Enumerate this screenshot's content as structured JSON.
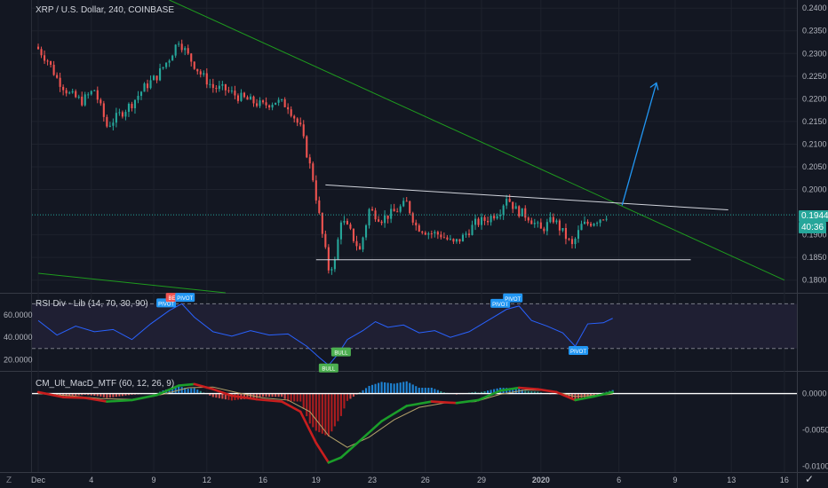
{
  "symbol_title": "XRP / U.S. Dollar, 240, COINBASE",
  "last_price": "0.1944",
  "countdown": "40:36",
  "rsi_label": "RSI Div - Lib (14, 70, 30, 90)",
  "macd_label": "CM_Ult_MacD_MTF (60, 12, 26, 9)",
  "corner_symbol": "Z",
  "logo_glyph": "✓",
  "colors": {
    "background": "#131722",
    "grid": "#1e222d",
    "bull": "#26a69a",
    "bear": "#ef5350",
    "trendline": "#1e9b1e",
    "pattern_line": "#d1d4dc",
    "projection_arrow": "#2196f3",
    "rsi_line": "#2962ff",
    "macd_up": "#1b9e2a",
    "macd_down": "#c81e1e",
    "signal": "#b5a36a"
  },
  "chart_data": [
    {
      "type": "candlestick",
      "title": "XRP / U.S. Dollar, 240, COINBASE",
      "x_ticks": [
        "Dec",
        "4",
        "9",
        "12",
        "16",
        "19",
        "23",
        "26",
        "29",
        "2020",
        "6",
        "9",
        "13",
        "16"
      ],
      "y_ticks": [
        "0.2400",
        "0.2350",
        "0.2300",
        "0.2250",
        "0.2200",
        "0.2150",
        "0.2100",
        "0.2050",
        "0.2000",
        "0.1900",
        "0.1850",
        "0.1800"
      ],
      "ylim": [
        0.1772,
        0.2418
      ],
      "last_price": 0.1944,
      "close_path": [
        {
          "x": 0,
          "y": 0.231
        },
        {
          "x": 3,
          "y": 0.2285
        },
        {
          "x": 6,
          "y": 0.2245
        },
        {
          "x": 10,
          "y": 0.221
        },
        {
          "x": 14,
          "y": 0.2195
        },
        {
          "x": 18,
          "y": 0.222
        },
        {
          "x": 22,
          "y": 0.214
        },
        {
          "x": 26,
          "y": 0.2165
        },
        {
          "x": 30,
          "y": 0.219
        },
        {
          "x": 34,
          "y": 0.2225
        },
        {
          "x": 38,
          "y": 0.225
        },
        {
          "x": 42,
          "y": 0.229
        },
        {
          "x": 45,
          "y": 0.233
        },
        {
          "x": 48,
          "y": 0.2295
        },
        {
          "x": 52,
          "y": 0.2255
        },
        {
          "x": 56,
          "y": 0.2225
        },
        {
          "x": 60,
          "y": 0.222
        },
        {
          "x": 64,
          "y": 0.2205
        },
        {
          "x": 68,
          "y": 0.2195
        },
        {
          "x": 72,
          "y": 0.2185
        },
        {
          "x": 76,
          "y": 0.2195
        },
        {
          "x": 80,
          "y": 0.2185
        },
        {
          "x": 84,
          "y": 0.2135
        },
        {
          "x": 88,
          "y": 0.2025
        },
        {
          "x": 91,
          "y": 0.19
        },
        {
          "x": 93,
          "y": 0.1825
        },
        {
          "x": 95,
          "y": 0.184
        },
        {
          "x": 97,
          "y": 0.1935
        },
        {
          "x": 100,
          "y": 0.1905
        },
        {
          "x": 103,
          "y": 0.1865
        },
        {
          "x": 106,
          "y": 0.1955
        },
        {
          "x": 110,
          "y": 0.1935
        },
        {
          "x": 114,
          "y": 0.195
        },
        {
          "x": 118,
          "y": 0.197
        },
        {
          "x": 121,
          "y": 0.192
        },
        {
          "x": 125,
          "y": 0.1905
        },
        {
          "x": 129,
          "y": 0.19
        },
        {
          "x": 133,
          "y": 0.188
        },
        {
          "x": 136,
          "y": 0.1895
        },
        {
          "x": 140,
          "y": 0.1925
        },
        {
          "x": 144,
          "y": 0.1935
        },
        {
          "x": 148,
          "y": 0.1955
        },
        {
          "x": 150,
          "y": 0.1985
        },
        {
          "x": 153,
          "y": 0.1955
        },
        {
          "x": 157,
          "y": 0.194
        },
        {
          "x": 161,
          "y": 0.191
        },
        {
          "x": 165,
          "y": 0.1935
        },
        {
          "x": 168,
          "y": 0.1905
        },
        {
          "x": 171,
          "y": 0.1875
        },
        {
          "x": 174,
          "y": 0.192
        },
        {
          "x": 178,
          "y": 0.193
        },
        {
          "x": 182,
          "y": 0.1944
        }
      ],
      "trendlines": [
        {
          "name": "descending-trendline",
          "points": [
            {
              "x": 42,
              "y": 0.2418
            },
            {
              "x": 239,
              "y": 0.18
            }
          ]
        },
        {
          "name": "lower-trendline",
          "points": [
            {
              "x": 0,
              "y": 0.1815
            },
            {
              "x": 60,
              "y": 0.1772
            }
          ]
        },
        {
          "name": "triangle-upper",
          "points": [
            {
              "x": 92,
              "y": 0.201
            },
            {
              "x": 221,
              "y": 0.1955
            }
          ]
        },
        {
          "name": "triangle-lower",
          "points": [
            {
              "x": 89,
              "y": 0.1845
            },
            {
              "x": 209,
              "y": 0.1845
            }
          ]
        },
        {
          "name": "breakout-projection",
          "points": [
            {
              "x": 187,
              "y": 0.1965
            },
            {
              "x": 198,
              "y": 0.2235
            }
          ]
        }
      ],
      "xlim": [
        -2,
        243
      ]
    },
    {
      "type": "line",
      "title": "RSI Div - Lib (14, 70, 30, 90)",
      "y_ticks": [
        "60.0000",
        "40.0000",
        "20.0000"
      ],
      "ylim": [
        10,
        79
      ],
      "bands": [
        70,
        30
      ],
      "rsi_path": [
        {
          "x": 0,
          "y": 55
        },
        {
          "x": 6,
          "y": 42
        },
        {
          "x": 12,
          "y": 50
        },
        {
          "x": 18,
          "y": 45
        },
        {
          "x": 24,
          "y": 47
        },
        {
          "x": 30,
          "y": 38
        },
        {
          "x": 36,
          "y": 52
        },
        {
          "x": 42,
          "y": 64
        },
        {
          "x": 46,
          "y": 70
        },
        {
          "x": 50,
          "y": 58
        },
        {
          "x": 56,
          "y": 45
        },
        {
          "x": 62,
          "y": 41
        },
        {
          "x": 68,
          "y": 46
        },
        {
          "x": 74,
          "y": 42
        },
        {
          "x": 80,
          "y": 43
        },
        {
          "x": 86,
          "y": 32
        },
        {
          "x": 90,
          "y": 22
        },
        {
          "x": 93,
          "y": 15
        },
        {
          "x": 96,
          "y": 25
        },
        {
          "x": 99,
          "y": 38
        },
        {
          "x": 104,
          "y": 46
        },
        {
          "x": 108,
          "y": 54
        },
        {
          "x": 112,
          "y": 49
        },
        {
          "x": 117,
          "y": 51
        },
        {
          "x": 122,
          "y": 44
        },
        {
          "x": 127,
          "y": 46
        },
        {
          "x": 132,
          "y": 40
        },
        {
          "x": 138,
          "y": 45
        },
        {
          "x": 144,
          "y": 55
        },
        {
          "x": 150,
          "y": 65
        },
        {
          "x": 154,
          "y": 68
        },
        {
          "x": 158,
          "y": 55
        },
        {
          "x": 163,
          "y": 50
        },
        {
          "x": 168,
          "y": 44
        },
        {
          "x": 172,
          "y": 32
        },
        {
          "x": 176,
          "y": 52
        },
        {
          "x": 181,
          "y": 53
        },
        {
          "x": 184,
          "y": 57
        }
      ],
      "markers": [
        {
          "label": "PIVOT",
          "x": 41,
          "kind": "pivot-top"
        },
        {
          "label": "BEAR",
          "x": 44,
          "kind": "bear"
        },
        {
          "label": "PIVOT",
          "x": 47,
          "kind": "pivot-top"
        },
        {
          "label": "BULL",
          "x": 93,
          "kind": "bull"
        },
        {
          "label": "BULL",
          "x": 97,
          "kind": "bull"
        },
        {
          "label": "PIVOT",
          "x": 148,
          "kind": "pivot-top"
        },
        {
          "label": "PIVOT",
          "x": 152,
          "kind": "pivot-top"
        },
        {
          "label": "PIVOT",
          "x": 173,
          "kind": "pivot-bottom"
        }
      ],
      "xlim": [
        -2,
        243
      ]
    },
    {
      "type": "histogram+line",
      "title": "CM_Ult_MacD_MTF (60, 12, 26, 9)",
      "y_ticks": [
        "0.0000",
        "-0.0050",
        "-0.0100"
      ],
      "ylim": [
        -0.0108,
        0.003
      ],
      "macd_path": [
        {
          "x": 0,
          "y": 0.0002
        },
        {
          "x": 8,
          "y": -0.0005
        },
        {
          "x": 15,
          "y": -0.0006
        },
        {
          "x": 22,
          "y": -0.0011
        },
        {
          "x": 30,
          "y": -0.0009
        },
        {
          "x": 38,
          "y": -0.0002
        },
        {
          "x": 45,
          "y": 0.0011
        },
        {
          "x": 50,
          "y": 0.0013
        },
        {
          "x": 56,
          "y": 0.0006
        },
        {
          "x": 62,
          "y": -0.0003
        },
        {
          "x": 70,
          "y": -0.0008
        },
        {
          "x": 78,
          "y": -0.0011
        },
        {
          "x": 84,
          "y": -0.0025
        },
        {
          "x": 89,
          "y": -0.0068
        },
        {
          "x": 93,
          "y": -0.0095
        },
        {
          "x": 97,
          "y": -0.0088
        },
        {
          "x": 103,
          "y": -0.0065
        },
        {
          "x": 110,
          "y": -0.0038
        },
        {
          "x": 118,
          "y": -0.0017
        },
        {
          "x": 126,
          "y": -0.0011
        },
        {
          "x": 134,
          "y": -0.0013
        },
        {
          "x": 141,
          "y": -0.0009
        },
        {
          "x": 148,
          "y": 0.0004
        },
        {
          "x": 154,
          "y": 0.0008
        },
        {
          "x": 160,
          "y": 0.0006
        },
        {
          "x": 166,
          "y": 0.0002
        },
        {
          "x": 172,
          "y": -0.0009
        },
        {
          "x": 178,
          "y": -0.0004
        },
        {
          "x": 184,
          "y": 0.0002
        }
      ],
      "signal_path": [
        {
          "x": 0,
          "y": 0
        },
        {
          "x": 10,
          "y": -0.0003
        },
        {
          "x": 20,
          "y": -0.0007
        },
        {
          "x": 30,
          "y": -0.0008
        },
        {
          "x": 40,
          "y": -0.0001
        },
        {
          "x": 48,
          "y": 0.0008
        },
        {
          "x": 56,
          "y": 0.0009
        },
        {
          "x": 64,
          "y": 0.0001
        },
        {
          "x": 72,
          "y": -0.0006
        },
        {
          "x": 80,
          "y": -0.0009
        },
        {
          "x": 87,
          "y": -0.0025
        },
        {
          "x": 93,
          "y": -0.0058
        },
        {
          "x": 99,
          "y": -0.0074
        },
        {
          "x": 106,
          "y": -0.006
        },
        {
          "x": 114,
          "y": -0.0036
        },
        {
          "x": 122,
          "y": -0.0019
        },
        {
          "x": 130,
          "y": -0.0013
        },
        {
          "x": 140,
          "y": -0.0011
        },
        {
          "x": 148,
          "y": -0.0001
        },
        {
          "x": 156,
          "y": 0.0005
        },
        {
          "x": 164,
          "y": 0.0004
        },
        {
          "x": 172,
          "y": -0.0004
        },
        {
          "x": 184,
          "y": -0.0001
        }
      ],
      "xlim": [
        -2,
        243
      ]
    }
  ]
}
